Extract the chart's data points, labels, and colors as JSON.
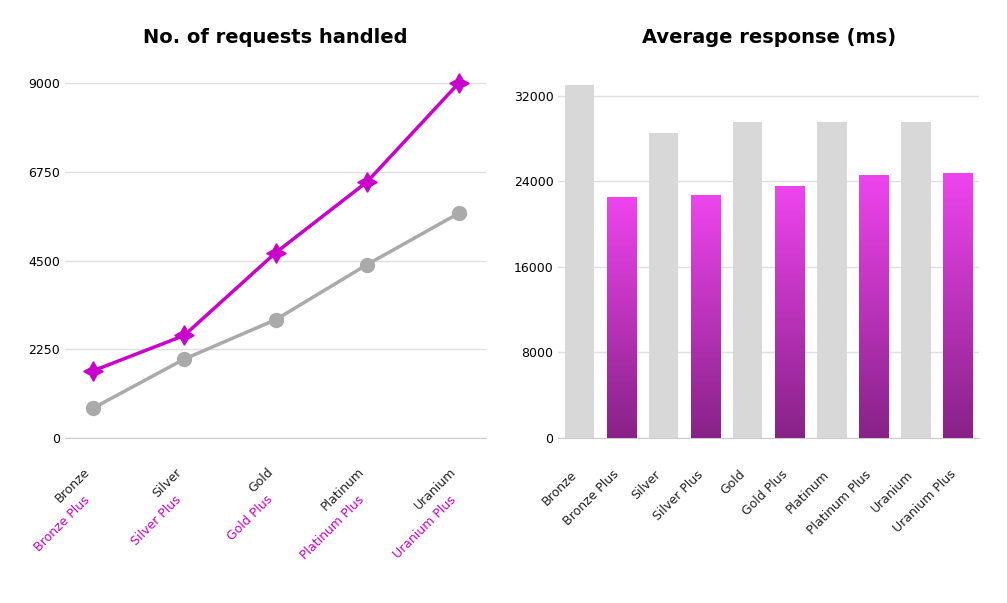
{
  "title_left": "No. of requests handled",
  "title_right": "Average response (ms)",
  "line_categories": [
    "Bronze",
    "Silver",
    "Gold",
    "Platinum",
    "Uranium"
  ],
  "line_categories_plus": [
    "Bronze Plus",
    "Silver Plus",
    "Gold Plus",
    "Platinum Plus",
    "Uranium Plus"
  ],
  "gray_line_values": [
    750,
    2000,
    3000,
    4400,
    5700
  ],
  "purple_line_values": [
    1700,
    2600,
    4700,
    6500,
    9000
  ],
  "bar_categories": [
    "Bronze",
    "Bronze Plus",
    "Silver",
    "Silver Plus",
    "Gold",
    "Gold Plus",
    "Platinum",
    "Platinum Plus",
    "Uranium",
    "Uranium Plus"
  ],
  "gray_bar_values": [
    33000,
    0,
    28500,
    0,
    29500,
    0,
    29500,
    0,
    29500,
    0
  ],
  "purple_bar_values": [
    0,
    22500,
    0,
    22700,
    0,
    23500,
    0,
    24500,
    0,
    24700
  ],
  "gray_line_color": "#aaaaaa",
  "purple_line_color": "#cc00cc",
  "gray_bar_color": "#d8d8d8",
  "purple_bar_top_color": "#ee44ee",
  "purple_bar_bottom_color": "#882288",
  "background_color": "#ffffff",
  "grid_color": "#e0e0e0",
  "title_fontsize": 14,
  "axis_fontsize": 9,
  "tick_fontsize": 9,
  "line_yticks": [
    0,
    2250,
    4500,
    6750,
    9000
  ],
  "bar_yticks": [
    0,
    8000,
    16000,
    24000,
    32000
  ]
}
